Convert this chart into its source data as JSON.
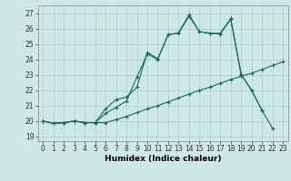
{
  "xlabel": "Humidex (Indice chaleur)",
  "bg_color": "#cde8e5",
  "line_color": "#1a6b5a",
  "grid_color": "#aacfcc",
  "xlim": [
    -0.5,
    23.5
  ],
  "ylim": [
    18.7,
    27.5
  ],
  "yticks": [
    19,
    20,
    21,
    22,
    23,
    24,
    25,
    26,
    27
  ],
  "xticks": [
    0,
    1,
    2,
    3,
    4,
    5,
    6,
    7,
    8,
    9,
    10,
    11,
    12,
    13,
    14,
    15,
    16,
    17,
    18,
    19,
    20,
    21,
    22,
    23
  ],
  "line1_x": [
    0,
    1,
    2,
    3,
    4,
    5,
    6,
    7,
    8,
    9,
    10,
    11,
    12,
    13,
    14,
    15,
    16,
    17,
    18,
    19,
    20,
    21,
    22,
    23
  ],
  "line1_y": [
    20.0,
    19.85,
    19.9,
    20.0,
    19.9,
    19.9,
    19.9,
    20.1,
    20.3,
    20.55,
    20.8,
    21.0,
    21.25,
    21.5,
    21.75,
    22.0,
    22.2,
    22.45,
    22.7,
    22.9,
    23.1,
    23.35,
    23.6,
    23.85
  ],
  "line2_x": [
    0,
    1,
    2,
    3,
    4,
    5,
    6,
    7,
    8,
    9,
    10,
    11,
    12,
    13,
    14,
    15,
    16,
    17,
    18,
    19,
    20,
    21,
    22,
    23
  ],
  "line2_y": [
    20.0,
    19.85,
    19.9,
    20.0,
    19.9,
    19.9,
    20.5,
    20.9,
    21.3,
    22.85,
    24.35,
    24.0,
    25.6,
    25.7,
    26.8,
    25.8,
    25.7,
    25.65,
    26.6,
    23.0,
    22.0,
    20.7,
    19.55,
    null
  ],
  "line3_x": [
    0,
    1,
    2,
    3,
    4,
    5,
    6,
    7,
    8,
    9,
    10,
    11,
    12,
    13,
    14,
    15,
    16,
    17,
    18,
    19,
    20,
    21,
    22,
    23
  ],
  "line3_y": [
    20.0,
    19.85,
    19.9,
    20.0,
    19.9,
    19.9,
    20.8,
    21.4,
    21.55,
    22.2,
    24.45,
    24.05,
    25.6,
    25.73,
    26.9,
    25.8,
    25.7,
    25.7,
    26.65,
    23.05,
    22.0,
    20.7,
    null,
    null
  ],
  "tick_fontsize": 5.5,
  "xlabel_fontsize": 6.5
}
